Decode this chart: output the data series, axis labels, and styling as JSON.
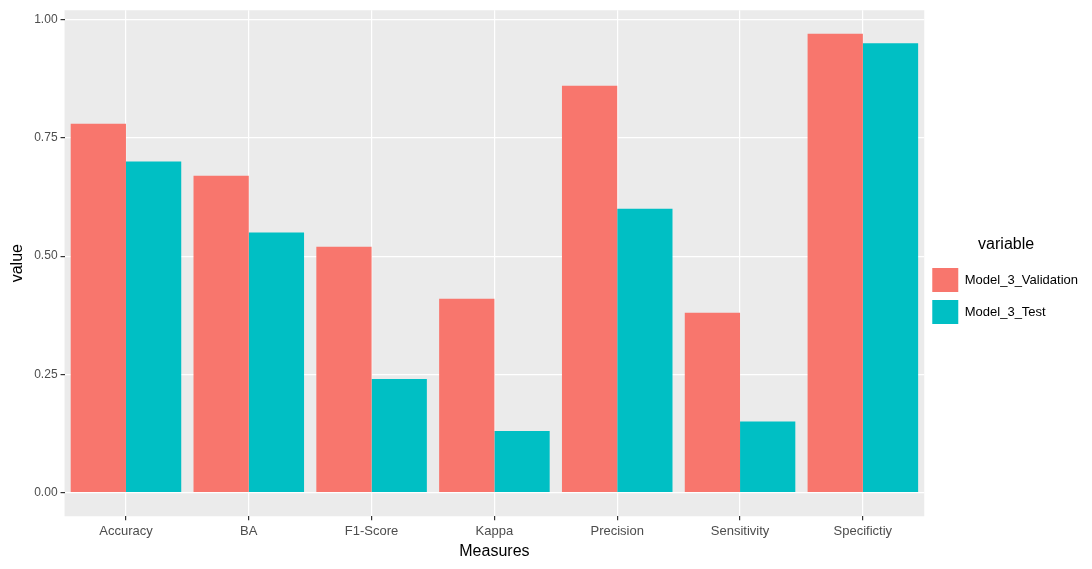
{
  "chart_data": {
    "type": "bar",
    "xlabel": "Measures",
    "ylabel": "value",
    "legend_title": "variable",
    "categories": [
      "Accuracy",
      "BA",
      "F1-Score",
      "Kappa",
      "Precision",
      "Sensitivity",
      "Specifictiy"
    ],
    "series": [
      {
        "name": "Model_3_Validation",
        "color": "#f8766d",
        "values": [
          0.78,
          0.67,
          0.52,
          0.41,
          0.86,
          0.38,
          0.97
        ]
      },
      {
        "name": "Model_3_Test",
        "color": "#00bfc4",
        "values": [
          0.7,
          0.55,
          0.24,
          0.13,
          0.6,
          0.15,
          0.95
        ]
      }
    ],
    "ylim": [
      -0.05,
      1.02
    ],
    "yticks": [
      {
        "value": 0,
        "label": "0.00"
      },
      {
        "value": 0.25,
        "label": "0.25"
      },
      {
        "value": 0.5,
        "label": "0.50"
      },
      {
        "value": 0.75,
        "label": "0.75"
      },
      {
        "value": 1,
        "label": "1.00"
      }
    ],
    "grid": true,
    "legend": "right"
  }
}
